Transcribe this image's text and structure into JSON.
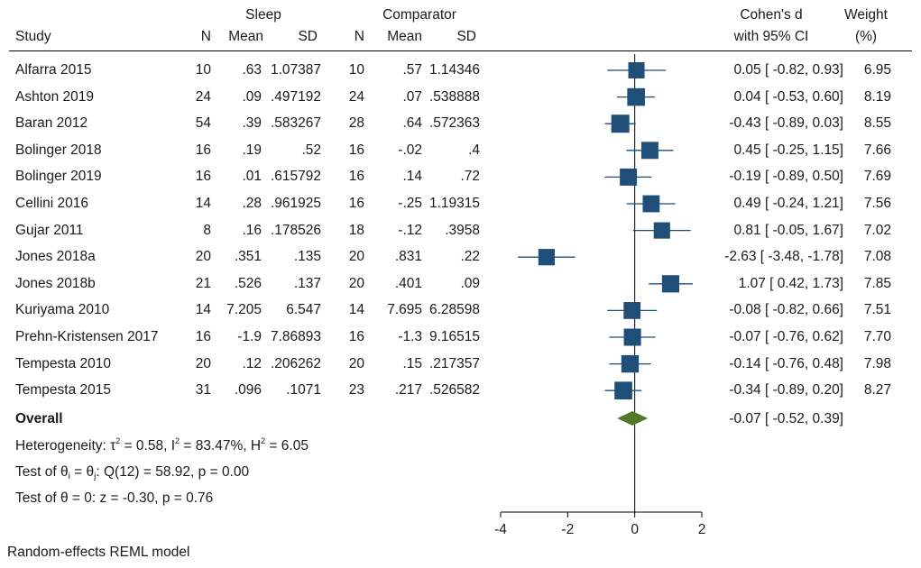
{
  "headers": {
    "sleep_group": "Sleep",
    "comparator_group": "Comparator",
    "study": "Study",
    "n": "N",
    "mean": "Mean",
    "sd": "SD",
    "effect_line1": "Cohen's d",
    "effect_line2": "with 95% CI",
    "weight_line1": "Weight",
    "weight_line2": "(%)"
  },
  "studies": [
    {
      "name": "Alfarra 2015",
      "n1": "10",
      "mean1": ".63",
      "sd1": "1.07387",
      "n2": "10",
      "mean2": ".57",
      "sd2": "1.14346",
      "ci_text": "0.05 [ -0.82,  0.93]",
      "weight": "6.95"
    },
    {
      "name": "Ashton 2019",
      "n1": "24",
      "mean1": ".09",
      "sd1": ".497192",
      "n2": "24",
      "mean2": ".07",
      "sd2": ".538888",
      "ci_text": "0.04 [ -0.53,  0.60]",
      "weight": "8.19"
    },
    {
      "name": "Baran 2012",
      "n1": "54",
      "mean1": ".39",
      "sd1": ".583267",
      "n2": "28",
      "mean2": ".64",
      "sd2": ".572363",
      "ci_text": "-0.43 [ -0.89,  0.03]",
      "weight": "8.55"
    },
    {
      "name": "Bolinger 2018",
      "n1": "16",
      "mean1": ".19",
      "sd1": ".52",
      "n2": "16",
      "mean2": "-.02",
      "sd2": ".4",
      "ci_text": "0.45 [ -0.25,  1.15]",
      "weight": "7.66"
    },
    {
      "name": "Bolinger 2019",
      "n1": "16",
      "mean1": ".01",
      "sd1": ".615792",
      "n2": "16",
      "mean2": ".14",
      "sd2": ".72",
      "ci_text": "-0.19 [ -0.89,  0.50]",
      "weight": "7.69"
    },
    {
      "name": "Cellini 2016",
      "n1": "14",
      "mean1": ".28",
      "sd1": ".961925",
      "n2": "16",
      "mean2": "-.25",
      "sd2": "1.19315",
      "ci_text": "0.49 [ -0.24,  1.21]",
      "weight": "7.56"
    },
    {
      "name": "Gujar 2011",
      "n1": "8",
      "mean1": ".16",
      "sd1": ".178526",
      "n2": "18",
      "mean2": "-.12",
      "sd2": ".3958",
      "ci_text": "0.81 [ -0.05,  1.67]",
      "weight": "7.02"
    },
    {
      "name": "Jones 2018a",
      "n1": "20",
      "mean1": ".351",
      "sd1": ".135",
      "n2": "20",
      "mean2": ".831",
      "sd2": ".22",
      "ci_text": "-2.63 [ -3.48, -1.78]",
      "weight": "7.08"
    },
    {
      "name": "Jones 2018b",
      "n1": "21",
      "mean1": ".526",
      "sd1": ".137",
      "n2": "20",
      "mean2": ".401",
      "sd2": ".09",
      "ci_text": "1.07 [  0.42,  1.73]",
      "weight": "7.85"
    },
    {
      "name": "Kuriyama 2010",
      "n1": "14",
      "mean1": "7.205",
      "sd1": "6.547",
      "n2": "14",
      "mean2": "7.695",
      "sd2": "6.28598",
      "ci_text": "-0.08 [ -0.82,  0.66]",
      "weight": "7.51"
    },
    {
      "name": "Prehn-Kristensen 2017",
      "n1": "16",
      "mean1": "-1.9",
      "sd1": "7.86893",
      "n2": "16",
      "mean2": "-1.3",
      "sd2": "9.16515",
      "ci_text": "-0.07 [ -0.76,  0.62]",
      "weight": "7.70"
    },
    {
      "name": "Tempesta 2010",
      "n1": "20",
      "mean1": ".12",
      "sd1": ".206262",
      "n2": "20",
      "mean2": ".15",
      "sd2": ".217357",
      "ci_text": "-0.14 [ -0.76,  0.48]",
      "weight": "7.98"
    },
    {
      "name": "Tempesta 2015",
      "n1": "31",
      "mean1": ".096",
      "sd1": ".1071",
      "n2": "23",
      "mean2": ".217",
      "sd2": ".526582",
      "ci_text": "-0.34 [ -0.89,  0.20]",
      "weight": "8.27"
    }
  ],
  "overall": {
    "label": "Overall",
    "ci_text": "-0.07 [ -0.52,  0.39]"
  },
  "heterogeneity": {
    "prefix": "Heterogeneity: τ",
    "tau_sup": "2",
    "tau_val": " = 0.58, I",
    "i_sup": "2",
    "i_val": " = 83.47%, H",
    "h_sup": "2",
    "h_val": " = 6.05"
  },
  "test_homogeneity": {
    "p1": "Test of θ",
    "sub1": "i",
    "p2": " = θ",
    "sub2": "j",
    "p3": ": Q(12) = 58.92, p = 0.00"
  },
  "test_overall": "Test of θ = 0: z = -0.30, p = 0.76",
  "footnote": "Random-effects REML model",
  "colors": {
    "marker": "#1f4e79",
    "diamond": "#4f7a28",
    "ci_line": "#1f4e79",
    "axis": "#000000"
  },
  "chart_data": {
    "type": "forest",
    "xlabel": "",
    "ylabel": "",
    "xlim": [
      -4,
      2
    ],
    "xticks": [
      -4,
      -2,
      0,
      2
    ],
    "xtick_labels": [
      "-4",
      "-2",
      "0",
      "2"
    ],
    "null_line": 0,
    "studies": [
      {
        "name": "Alfarra 2015",
        "d": 0.05,
        "lo": -0.82,
        "hi": 0.93,
        "weight": 6.95
      },
      {
        "name": "Ashton 2019",
        "d": 0.04,
        "lo": -0.53,
        "hi": 0.6,
        "weight": 8.19
      },
      {
        "name": "Baran 2012",
        "d": -0.43,
        "lo": -0.89,
        "hi": 0.03,
        "weight": 8.55
      },
      {
        "name": "Bolinger 2018",
        "d": 0.45,
        "lo": -0.25,
        "hi": 1.15,
        "weight": 7.66
      },
      {
        "name": "Bolinger 2019",
        "d": -0.19,
        "lo": -0.89,
        "hi": 0.5,
        "weight": 7.69
      },
      {
        "name": "Cellini 2016",
        "d": 0.49,
        "lo": -0.24,
        "hi": 1.21,
        "weight": 7.56
      },
      {
        "name": "Gujar 2011",
        "d": 0.81,
        "lo": -0.05,
        "hi": 1.67,
        "weight": 7.02
      },
      {
        "name": "Jones 2018a",
        "d": -2.63,
        "lo": -3.48,
        "hi": -1.78,
        "weight": 7.08
      },
      {
        "name": "Jones 2018b",
        "d": 1.07,
        "lo": 0.42,
        "hi": 1.73,
        "weight": 7.85
      },
      {
        "name": "Kuriyama 2010",
        "d": -0.08,
        "lo": -0.82,
        "hi": 0.66,
        "weight": 7.51
      },
      {
        "name": "Prehn-Kristensen 2017",
        "d": -0.07,
        "lo": -0.76,
        "hi": 0.62,
        "weight": 7.7
      },
      {
        "name": "Tempesta 2010",
        "d": -0.14,
        "lo": -0.76,
        "hi": 0.48,
        "weight": 7.98
      },
      {
        "name": "Tempesta 2015",
        "d": -0.34,
        "lo": -0.89,
        "hi": 0.2,
        "weight": 8.27
      }
    ],
    "overall": {
      "name": "Overall",
      "d": -0.07,
      "lo": -0.52,
      "hi": 0.39
    }
  }
}
